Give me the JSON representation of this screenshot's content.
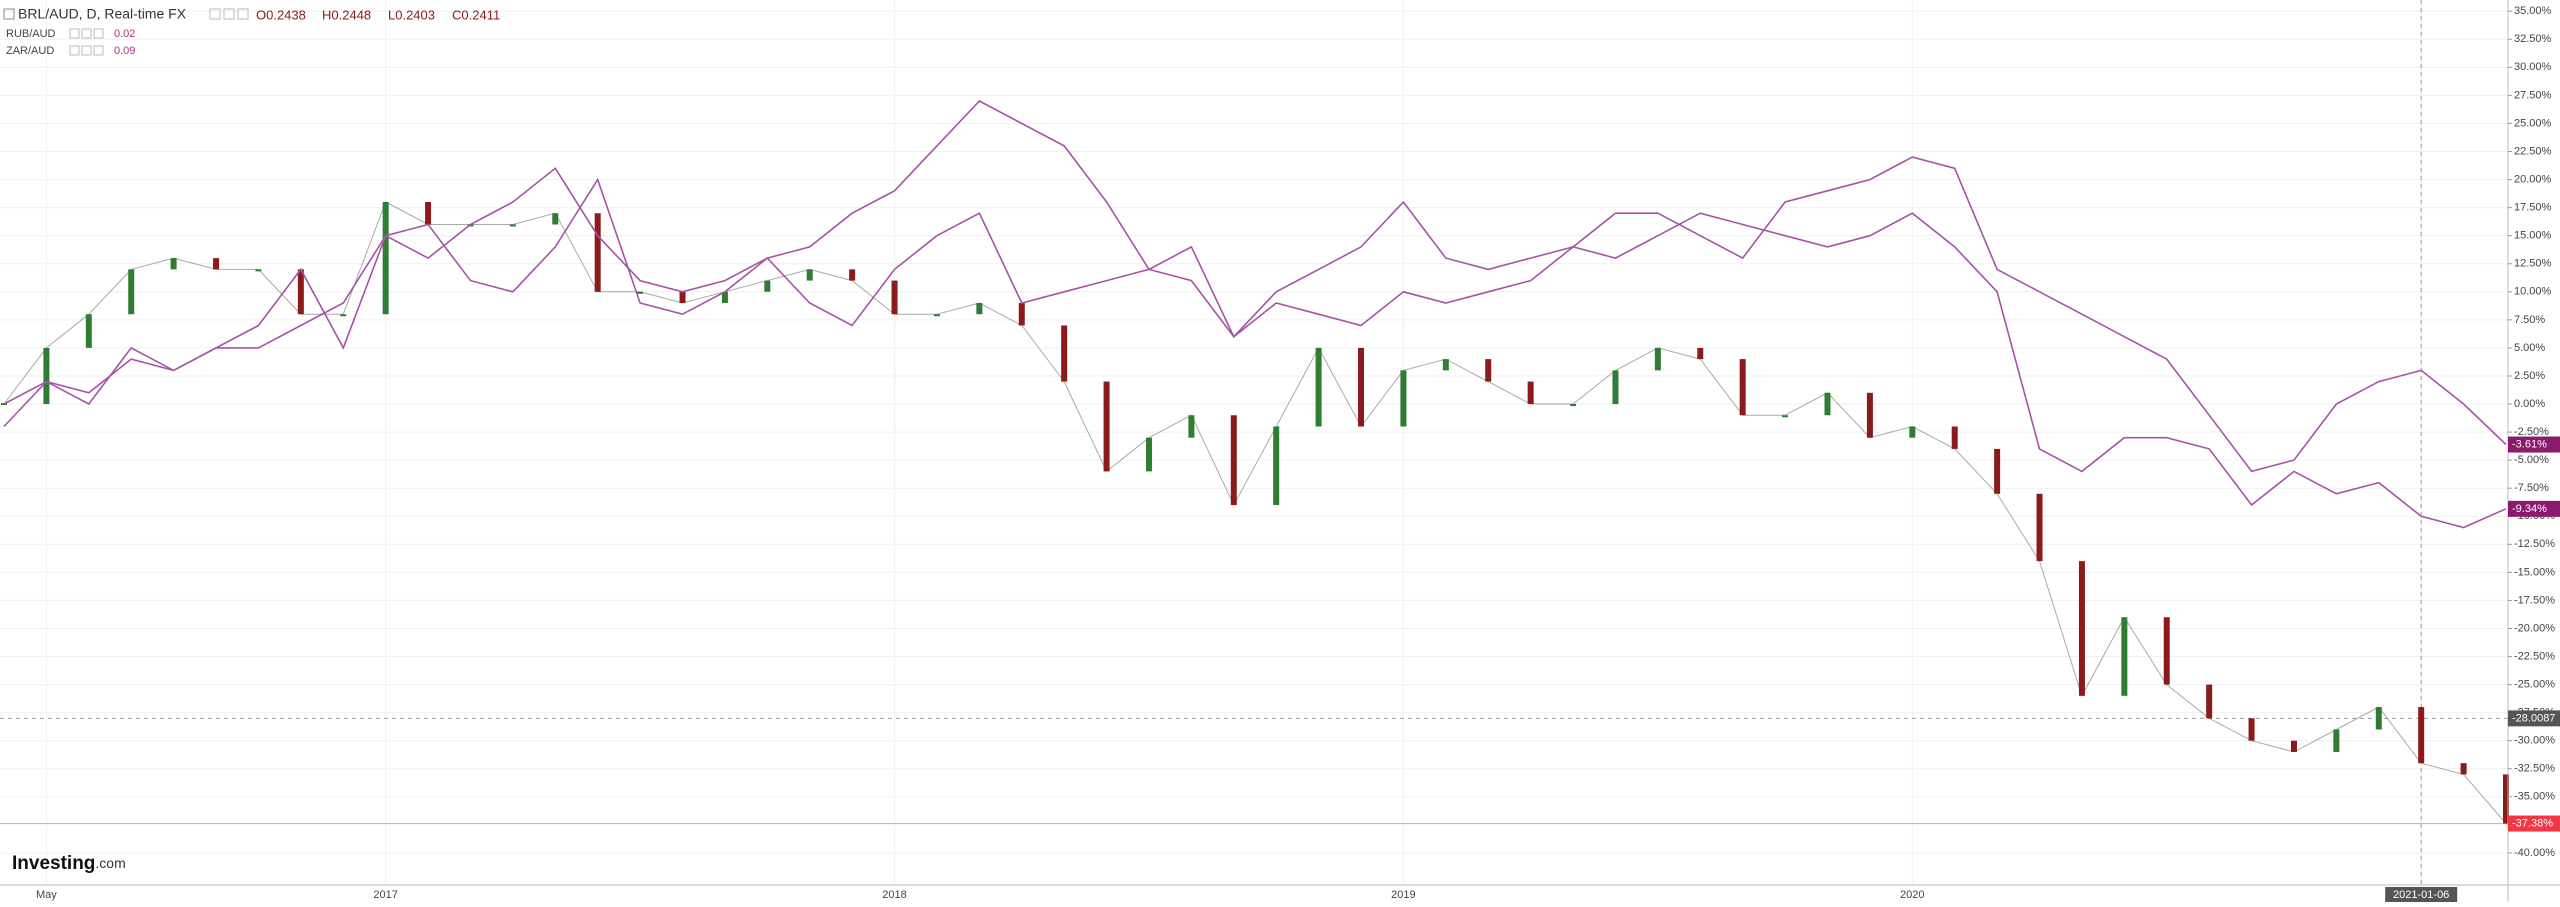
{
  "chart_data": {
    "type": "line",
    "header": {
      "title": "BRL/AUD, D, Real-time FX",
      "ohlc": [
        "O0.2438",
        "H0.2448",
        "L0.2403",
        "C0.2411"
      ]
    },
    "logo": {
      "brand": "Investing",
      "suffix": ".com"
    },
    "categories": [
      null,
      "May",
      null,
      null,
      null,
      null,
      null,
      null,
      null,
      "2017",
      null,
      null,
      null,
      null,
      null,
      null,
      null,
      null,
      null,
      null,
      null,
      "2018",
      null,
      null,
      null,
      null,
      null,
      null,
      null,
      null,
      null,
      null,
      null,
      "2019",
      null,
      null,
      null,
      null,
      null,
      null,
      null,
      null,
      null,
      null,
      null,
      "2020",
      null,
      null,
      null,
      null,
      null,
      null,
      null,
      null,
      null,
      null,
      null,
      "2021-01-06",
      null,
      null
    ],
    "series": [
      {
        "name": "BRL/AUD",
        "type": "candlestick",
        "up_color": "#2e7d32",
        "down_color": "#8b1a1a",
        "label_color": "#f23645",
        "last_value_label": "-37.38%",
        "values": [
          0,
          5,
          8,
          12,
          13,
          12,
          12,
          8,
          8,
          18,
          16,
          16,
          16,
          17,
          10,
          10,
          9,
          10,
          11,
          12,
          11,
          8,
          8,
          9,
          7,
          2,
          -6,
          -3,
          -1,
          -9,
          -2,
          5,
          -2,
          3,
          4,
          2,
          0,
          0,
          3,
          5,
          4,
          -1,
          -1,
          1,
          -3,
          -2,
          -4,
          -8,
          -14,
          -26,
          -19,
          -25,
          -28,
          -30,
          -31,
          -29,
          -27,
          -32,
          -33,
          -37.38
        ]
      },
      {
        "name": "RUB/AUD",
        "type": "line",
        "color": "#a653a6",
        "label_color": "#8a1a6e",
        "legend_value": 0.02,
        "last_value_label": "-3.61%",
        "values": [
          -2,
          2,
          0,
          5,
          3,
          5,
          7,
          12,
          5,
          15,
          13,
          16,
          18,
          21,
          15,
          11,
          10,
          11,
          13,
          14,
          17,
          19,
          23,
          27,
          25,
          23,
          18,
          12,
          14,
          6,
          10,
          12,
          14,
          18,
          13,
          12,
          13,
          14,
          17,
          17,
          15,
          13,
          18,
          19,
          20,
          22,
          21,
          12,
          10,
          8,
          6,
          4,
          -1,
          -6,
          -5,
          0,
          2,
          3,
          0,
          -3.61
        ]
      },
      {
        "name": "ZAR/AUD",
        "type": "line",
        "color": "#a653a6",
        "label_color": "#8a1a6e",
        "legend_value": 0.09,
        "last_value_label": "-9.34%",
        "values": [
          0,
          2,
          1,
          4,
          3,
          5,
          5,
          7,
          9,
          15,
          16,
          11,
          10,
          14,
          20,
          9,
          8,
          10,
          13,
          9,
          7,
          12,
          15,
          17,
          9,
          10,
          11,
          12,
          11,
          6,
          9,
          8,
          7,
          10,
          9,
          10,
          11,
          14,
          13,
          15,
          17,
          16,
          15,
          14,
          15,
          17,
          14,
          10,
          -4,
          -6,
          -3,
          -3,
          -4,
          -9,
          -6,
          -8,
          -7,
          -10,
          -11,
          -9.34
        ]
      }
    ],
    "crosshair_y": -28.0087,
    "ylim": [
      -42.5,
      36
    ],
    "yticks": [
      {
        "value": 35,
        "label": "35.00%"
      },
      {
        "value": 32.5,
        "label": "32.50%"
      },
      {
        "value": 30,
        "label": "30.00%"
      },
      {
        "value": 27.5,
        "label": "27.50%"
      },
      {
        "value": 25,
        "label": "25.00%"
      },
      {
        "value": 22.5,
        "label": "22.50%"
      },
      {
        "value": 20,
        "label": "20.00%"
      },
      {
        "value": 17.5,
        "label": "17.50%"
      },
      {
        "value": 15,
        "label": "15.00%"
      },
      {
        "value": 12.5,
        "label": "12.50%"
      },
      {
        "value": 10,
        "label": "10.00%"
      },
      {
        "value": 7.5,
        "label": "7.50%"
      },
      {
        "value": 5,
        "label": "5.00%"
      },
      {
        "value": 2.5,
        "label": "2.50%"
      },
      {
        "value": 0,
        "label": "0.00%"
      },
      {
        "value": -2.5,
        "label": "-2.50%"
      },
      {
        "value": -5,
        "label": "-5.00%"
      },
      {
        "value": -7.5,
        "label": "-7.50%"
      },
      {
        "value": -10,
        "label": "-10.00%"
      },
      {
        "value": -12.5,
        "label": "-12.50%"
      },
      {
        "value": -15,
        "label": "-15.00%"
      },
      {
        "value": -17.5,
        "label": "-17.50%"
      },
      {
        "value": -20,
        "label": "-20.00%"
      },
      {
        "value": -22.5,
        "label": "-22.50%"
      },
      {
        "value": -25,
        "label": "-25.00%"
      },
      {
        "value": -27.5,
        "label": "-27.50%"
      },
      {
        "value": -30,
        "label": "-30.00%"
      },
      {
        "value": -32.5,
        "label": "-32.50%"
      },
      {
        "value": -35,
        "label": "-35.00%"
      },
      {
        "value": -37.5,
        "label": "-37.50%"
      },
      {
        "value": -40,
        "label": "-40.00%"
      }
    ],
    "grid": true
  }
}
